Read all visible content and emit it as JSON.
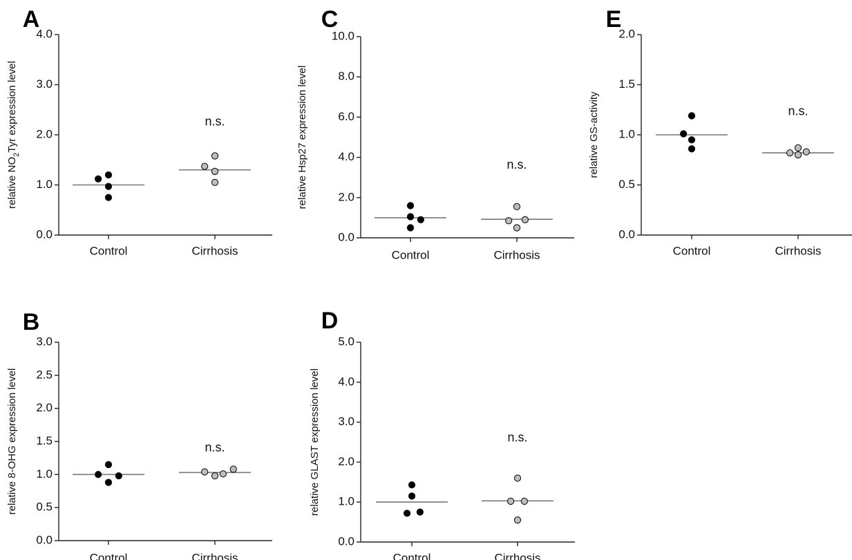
{
  "chart_data": [
    {
      "panel": "A",
      "type": "scatter",
      "ylabel": "relative NO2Tyr expression level",
      "ylabel_parts": [
        "relative NO",
        "2",
        "Tyr expression level"
      ],
      "yticks": [
        "0.0",
        "1.0",
        "2.0",
        "3.0",
        "4.0"
      ],
      "ylim": [
        0,
        4
      ],
      "categories": [
        "Control",
        "Cirrhosis"
      ],
      "annotation": "n.s.",
      "annotation_y": 2.25,
      "series": [
        {
          "category": "Control",
          "fill": "#000000",
          "mean": 1.0,
          "points": [
            {
              "x": 0.85,
              "y": 1.12
            },
            {
              "x": 1.0,
              "y": 1.2
            },
            {
              "x": 1.0,
              "y": 0.75
            },
            {
              "x": 1.0,
              "y": 0.97
            }
          ]
        },
        {
          "category": "Cirrhosis",
          "fill": "#bdbdbd",
          "mean": 1.3,
          "points": [
            {
              "x": 0.85,
              "y": 1.37
            },
            {
              "x": 1.0,
              "y": 1.58
            },
            {
              "x": 1.0,
              "y": 1.27
            },
            {
              "x": 1.0,
              "y": 1.05
            }
          ]
        }
      ]
    },
    {
      "panel": "B",
      "type": "scatter",
      "ylabel": "relative 8-OHG expression level",
      "yticks": [
        "0.0",
        "0.5",
        "1.0",
        "1.5",
        "2.0",
        "2.5",
        "3.0"
      ],
      "ylim": [
        0,
        3
      ],
      "categories": [
        "Control",
        "Cirrhosis"
      ],
      "annotation": "n.s.",
      "annotation_y": 1.4,
      "series": [
        {
          "category": "Control",
          "fill": "#000000",
          "mean": 1.0,
          "points": [
            {
              "x": 1.0,
              "y": 1.15
            },
            {
              "x": 0.85,
              "y": 1.0
            },
            {
              "x": 1.15,
              "y": 0.98
            },
            {
              "x": 1.0,
              "y": 0.88
            }
          ]
        },
        {
          "category": "Cirrhosis",
          "fill": "#bdbdbd",
          "mean": 1.03,
          "points": [
            {
              "x": 0.85,
              "y": 1.04
            },
            {
              "x": 1.0,
              "y": 0.98
            },
            {
              "x": 1.12,
              "y": 1.01
            },
            {
              "x": 1.27,
              "y": 1.08
            }
          ]
        }
      ]
    },
    {
      "panel": "C",
      "type": "scatter",
      "ylabel": "relative Hsp27 expression level",
      "yticks": [
        "0.0",
        "2.0",
        "4.0",
        "6.0",
        "8.0",
        "10.0"
      ],
      "ylim": [
        0,
        10
      ],
      "categories": [
        "Control",
        "Cirrhosis"
      ],
      "annotation": "n.s.",
      "annotation_y": 3.6,
      "series": [
        {
          "category": "Control",
          "fill": "#000000",
          "mean": 1.0,
          "points": [
            {
              "x": 1.0,
              "y": 1.6
            },
            {
              "x": 1.0,
              "y": 1.05
            },
            {
              "x": 1.15,
              "y": 0.9
            },
            {
              "x": 1.0,
              "y": 0.5
            }
          ]
        },
        {
          "category": "Cirrhosis",
          "fill": "#bdbdbd",
          "mean": 0.92,
          "points": [
            {
              "x": 1.0,
              "y": 1.55
            },
            {
              "x": 0.88,
              "y": 0.85
            },
            {
              "x": 1.12,
              "y": 0.9
            },
            {
              "x": 1.0,
              "y": 0.5
            }
          ]
        }
      ]
    },
    {
      "panel": "D",
      "type": "scatter",
      "ylabel": "relative GLAST expression level",
      "yticks": [
        "0.0",
        "1.0",
        "2.0",
        "3.0",
        "4.0",
        "5.0"
      ],
      "ylim": [
        0,
        5
      ],
      "categories": [
        "Control",
        "Cirrhosis"
      ],
      "annotation": "n.s.",
      "annotation_y": 2.6,
      "series": [
        {
          "category": "Control",
          "fill": "#000000",
          "mean": 1.0,
          "points": [
            {
              "x": 1.0,
              "y": 1.43
            },
            {
              "x": 1.0,
              "y": 1.15
            },
            {
              "x": 0.93,
              "y": 0.72
            },
            {
              "x": 1.12,
              "y": 0.75
            }
          ]
        },
        {
          "category": "Cirrhosis",
          "fill": "#bdbdbd",
          "mean": 1.03,
          "points": [
            {
              "x": 1.0,
              "y": 1.6
            },
            {
              "x": 0.9,
              "y": 1.02
            },
            {
              "x": 1.1,
              "y": 1.02
            },
            {
              "x": 1.0,
              "y": 0.55
            }
          ]
        }
      ]
    },
    {
      "panel": "E",
      "type": "scatter",
      "ylabel": "relative GS-activity",
      "yticks": [
        "0.0",
        "0.5",
        "1.0",
        "1.5",
        "2.0"
      ],
      "ylim": [
        0,
        2
      ],
      "categories": [
        "Control",
        "Cirrhosis"
      ],
      "annotation": "n.s.",
      "annotation_y": 1.23,
      "series": [
        {
          "category": "Control",
          "fill": "#000000",
          "mean": 1.0,
          "points": [
            {
              "x": 1.0,
              "y": 1.19
            },
            {
              "x": 0.88,
              "y": 1.01
            },
            {
              "x": 1.0,
              "y": 0.95
            },
            {
              "x": 1.0,
              "y": 0.86
            }
          ]
        },
        {
          "category": "Cirrhosis",
          "fill": "#bdbdbd",
          "mean": 0.82,
          "points": [
            {
              "x": 0.88,
              "y": 0.82
            },
            {
              "x": 1.0,
              "y": 0.87
            },
            {
              "x": 1.0,
              "y": 0.8
            },
            {
              "x": 1.12,
              "y": 0.83
            }
          ]
        }
      ]
    }
  ]
}
